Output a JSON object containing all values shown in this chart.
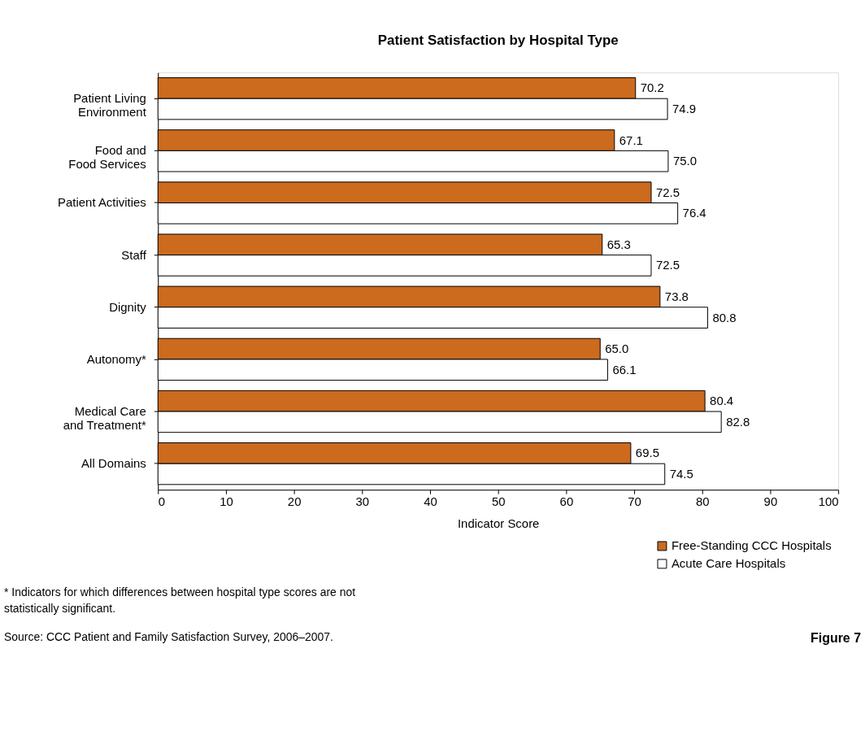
{
  "chart_data": {
    "type": "bar",
    "orientation": "horizontal",
    "title": "Patient Satisfaction by Hospital Type",
    "xlabel": "Indicator Score",
    "categories": [
      "Patient Living\nEnvironment",
      "Food and\nFood Services",
      "Patient Activities",
      "Staff",
      "Dignity",
      "Autonomy*",
      "Medical Care\nand Treatment*",
      "All Domains"
    ],
    "series": [
      {
        "name": "Free-Standing CCC Hospitals",
        "color": "#cc6a1e",
        "values": [
          70.2,
          67.1,
          72.5,
          65.3,
          73.8,
          65.0,
          80.4,
          69.5
        ],
        "value_labels": [
          "70.2",
          "67.1",
          "72.5",
          "65.3",
          "73.8",
          "65.0",
          "80.4",
          "69.5"
        ]
      },
      {
        "name": "Acute Care Hospitals",
        "color": "#ffffff",
        "values": [
          74.9,
          75.0,
          76.4,
          72.5,
          80.8,
          66.1,
          82.8,
          74.5
        ],
        "value_labels": [
          "74.9",
          "75.0",
          "76.4",
          "72.5",
          "80.8",
          "66.1",
          "82.8",
          "74.5"
        ]
      }
    ],
    "xlim": [
      0,
      100
    ],
    "xticks": [
      0,
      10,
      20,
      30,
      40,
      50,
      60,
      70,
      80,
      90,
      100
    ],
    "grid": false,
    "legend": "bottom right",
    "annotations": [
      "* Indicators for which differences between hospital type scores are not\n  statistically significant.",
      "Source: CCC Patient and Family Satisfaction Survey, 2006–2007.",
      "Figure 7"
    ]
  }
}
